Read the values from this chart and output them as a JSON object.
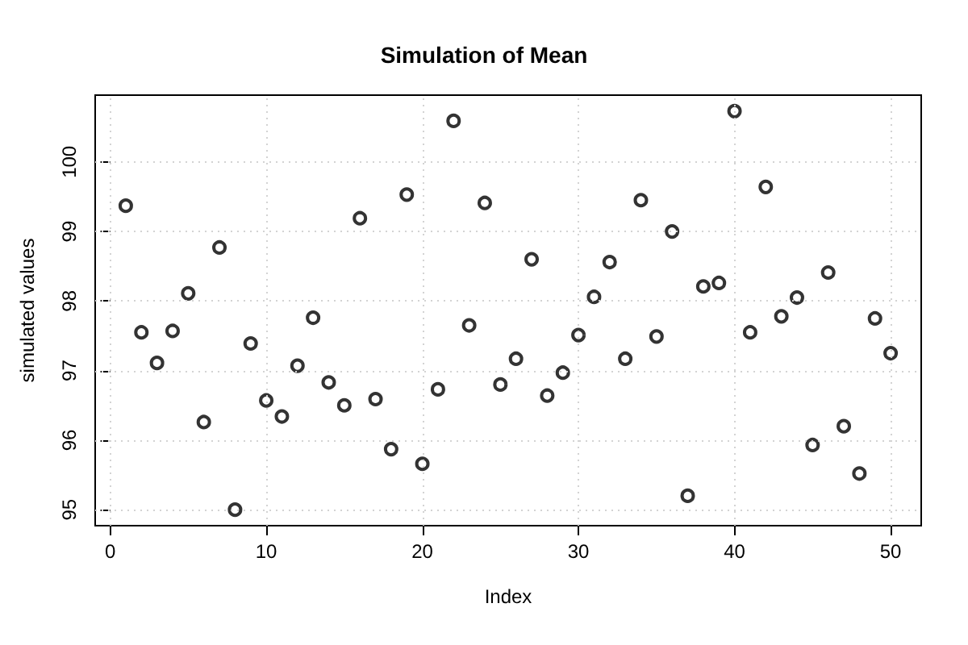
{
  "chart_data": {
    "type": "scatter",
    "title": "Simulation of Mean",
    "xlabel": "Index",
    "ylabel": "simulated values",
    "x": [
      1,
      2,
      3,
      4,
      5,
      6,
      7,
      8,
      9,
      10,
      11,
      12,
      13,
      14,
      15,
      16,
      17,
      18,
      19,
      20,
      21,
      22,
      23,
      24,
      25,
      26,
      27,
      28,
      29,
      30,
      31,
      32,
      33,
      34,
      35,
      36,
      37,
      38,
      39,
      40,
      41,
      42,
      43,
      44,
      45,
      46,
      47,
      48,
      49,
      50
    ],
    "series": [
      {
        "color": "#000000",
        "values": [
          99.37,
          97.55,
          97.11,
          97.57,
          98.11,
          96.26,
          98.77,
          95.0,
          97.39,
          96.57,
          96.34,
          97.07,
          97.76,
          96.83,
          96.5,
          99.19,
          96.59,
          95.87,
          99.53,
          95.66,
          96.73,
          100.59,
          97.65,
          99.41,
          96.8,
          97.17,
          98.6,
          96.64,
          96.97,
          97.51,
          98.06,
          98.56,
          97.17,
          99.45,
          97.49,
          99.0,
          95.2,
          98.21,
          98.26,
          100.73,
          97.55,
          99.64,
          97.78,
          98.05,
          95.93,
          98.41,
          96.2,
          95.52,
          97.75,
          97.25
        ]
      }
    ],
    "xlim": [
      -0.96,
      51.96
    ],
    "xticks": [
      0,
      10,
      20,
      30,
      40,
      50
    ],
    "ylim": [
      94.77,
      100.96
    ],
    "yticks": [
      95,
      96,
      97,
      98,
      99,
      100
    ],
    "grid": true,
    "marker": "circle"
  }
}
